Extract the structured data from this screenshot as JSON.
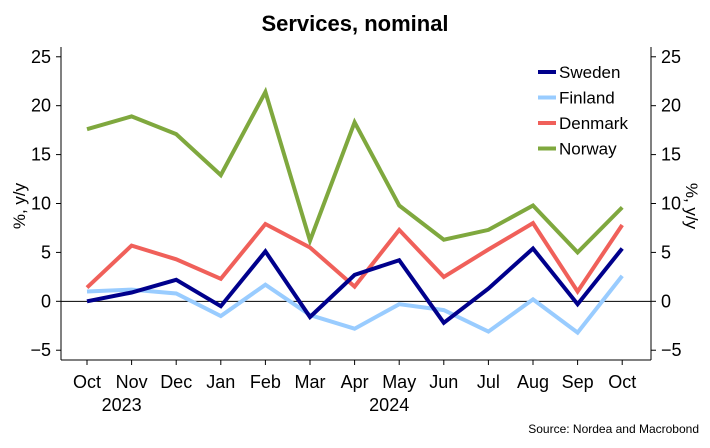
{
  "chart_data": {
    "type": "line",
    "title": "Services, nominal",
    "ylabel_left": "%, y/y",
    "ylabel_right": "%, y/y",
    "categories": [
      "Oct",
      "Nov",
      "Dec",
      "Jan",
      "Feb",
      "Mar",
      "Apr",
      "May",
      "Jun",
      "Jul",
      "Aug",
      "Sep",
      "Oct"
    ],
    "year_labels": [
      {
        "label": "2023",
        "at": "Nov"
      },
      {
        "label": "2024",
        "at": "May"
      }
    ],
    "ylim": [
      -6,
      26
    ],
    "yticks": [
      -5,
      0,
      5,
      10,
      15,
      20,
      25
    ],
    "series": [
      {
        "name": "Sweden",
        "color": "#00008c",
        "values": [
          0.0,
          0.9,
          2.2,
          -0.5,
          5.1,
          -1.6,
          2.7,
          4.2,
          -2.2,
          1.3,
          5.4,
          -0.3,
          5.4
        ]
      },
      {
        "name": "Finland",
        "color": "#99ccff",
        "values": [
          1.0,
          1.2,
          0.8,
          -1.5,
          1.7,
          -1.4,
          -2.8,
          -0.3,
          -0.9,
          -3.1,
          0.2,
          -3.2,
          2.6
        ]
      },
      {
        "name": "Denmark",
        "color": "#f0605a",
        "values": [
          1.4,
          5.7,
          4.3,
          2.3,
          7.9,
          5.5,
          1.5,
          7.3,
          2.5,
          5.3,
          8.0,
          1.0,
          7.8
        ]
      },
      {
        "name": "Norway",
        "color": "#7fa83e",
        "values": [
          17.6,
          18.9,
          17.1,
          12.9,
          21.4,
          6.2,
          18.3,
          9.8,
          6.3,
          7.3,
          9.8,
          5.0,
          9.6
        ]
      }
    ],
    "grid": false,
    "legend_position": "top-right",
    "source": "Source: Nordea and Macrobond"
  }
}
